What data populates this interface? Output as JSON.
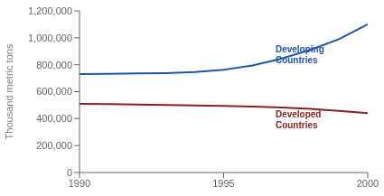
{
  "chart_data": {
    "type": "line",
    "y_label": "Thousand metric tons",
    "x": [
      1990,
      1991,
      1992,
      1993,
      1994,
      1995,
      1996,
      1997,
      1998,
      1999,
      2000
    ],
    "series": [
      {
        "color": "#2255aa",
        "values": [
          730000,
          733000,
          735000,
          738000,
          745000,
          762000,
          795000,
          845000,
          910000,
          990000,
          1100000
        ]
      },
      {
        "color": "#882222",
        "values": [
          510000,
          507000,
          504000,
          501000,
          498000,
          495000,
          490000,
          482000,
          472000,
          458000,
          440000
        ]
      }
    ],
    "annotations": [
      {
        "text": "Developing\nCountries",
        "x": 1996.8,
        "y": 870000,
        "color": "#2255aa"
      },
      {
        "text": "Developed\nCountries",
        "x": 1996.8,
        "y": 390000,
        "color": "#882222"
      }
    ],
    "xlim": [
      1990,
      2000
    ],
    "xticks": [
      1990,
      1995,
      2000
    ],
    "ylim": [
      0,
      1200000
    ],
    "yticks": [
      0,
      {
        "value": 200000,
        "label": "200,000"
      },
      {
        "value": 400000,
        "label": "400,000"
      },
      {
        "value": 600000,
        "label": "600,000"
      },
      {
        "value": 800000,
        "label": "800,000"
      },
      {
        "value": 1000000,
        "label": "1,000,000"
      },
      {
        "value": 1200000,
        "label": "1,200,000"
      }
    ],
    "grid": false
  }
}
